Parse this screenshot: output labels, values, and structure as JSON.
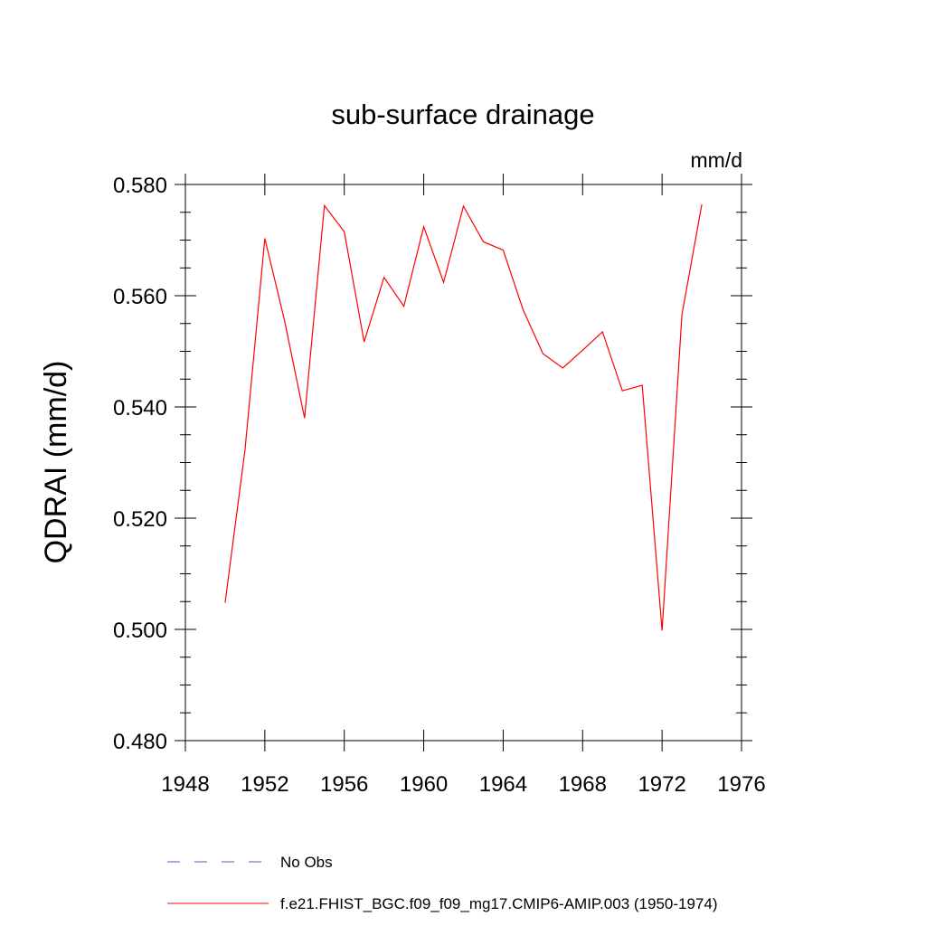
{
  "chart_data": {
    "type": "line",
    "title": "sub-surface drainage",
    "units": "mm/d",
    "xlabel": "",
    "ylabel": "QDRAI  (mm/d)",
    "xlim": [
      1948,
      1976
    ],
    "ylim": [
      0.48,
      0.58
    ],
    "x_ticks": [
      1948,
      1952,
      1956,
      1960,
      1964,
      1968,
      1972,
      1976
    ],
    "x_tick_labels": [
      "1948",
      "1952",
      "1956",
      "1960",
      "1964",
      "1968",
      "1972",
      "1976"
    ],
    "y_ticks": [
      0.48,
      0.5,
      0.52,
      0.54,
      0.56,
      0.58
    ],
    "y_tick_labels": [
      "0.480",
      "0.500",
      "0.520",
      "0.540",
      "0.560",
      "0.580"
    ],
    "grid": false,
    "legend_position": "bottom",
    "series": [
      {
        "name": "No Obs",
        "color": "#5555bb",
        "style": "dashed",
        "x": [],
        "values": []
      },
      {
        "name": "f.e21.FHIST_BGC.f09_f09_mg17.CMIP6-AMIP.003 (1950-1974)",
        "color": "#ff0000",
        "style": "solid",
        "x": [
          1950,
          1951,
          1952,
          1953,
          1954,
          1955,
          1956,
          1957,
          1958,
          1959,
          1960,
          1961,
          1962,
          1963,
          1964,
          1965,
          1966,
          1967,
          1968,
          1969,
          1970,
          1971,
          1972,
          1973,
          1974
        ],
        "values": [
          0.5048,
          0.5322,
          0.5703,
          0.5554,
          0.538,
          0.5762,
          0.5715,
          0.5517,
          0.5633,
          0.5581,
          0.5724,
          0.5624,
          0.5761,
          0.5697,
          0.5682,
          0.5575,
          0.5496,
          0.547,
          0.5502,
          0.5535,
          0.5429,
          0.5439,
          0.4998,
          0.5566,
          0.5764
        ]
      }
    ]
  }
}
